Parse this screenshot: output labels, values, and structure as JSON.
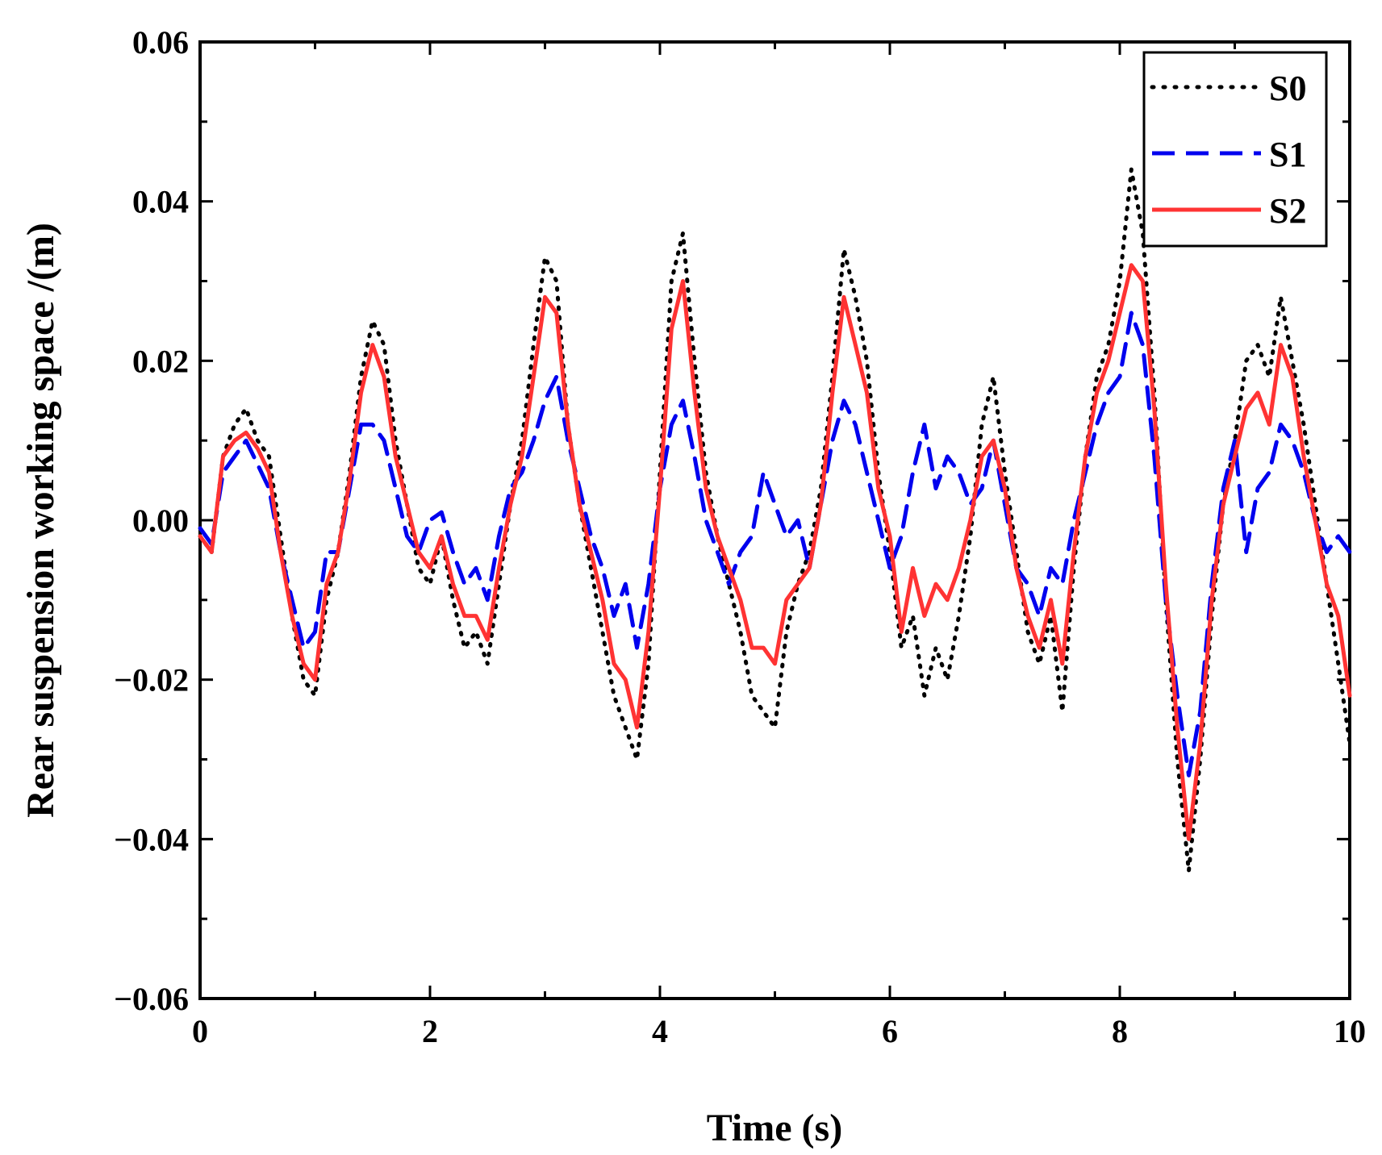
{
  "chart_data": {
    "type": "line",
    "title": "",
    "xlabel": "Time (s)",
    "ylabel": "Rear suspension working space /(m)",
    "xlim": [
      0,
      10
    ],
    "ylim": [
      -0.06,
      0.06
    ],
    "xticks": [
      0,
      2,
      4,
      6,
      8,
      10
    ],
    "xtick_labels": [
      "0",
      "2",
      "4",
      "6",
      "8",
      "10"
    ],
    "yticks": [
      -0.06,
      -0.04,
      -0.02,
      0.0,
      0.02,
      0.04,
      0.06
    ],
    "ytick_labels": [
      "−0.06",
      "−0.04",
      "−0.02",
      "0.00",
      "0.02",
      "0.04",
      "0.06"
    ],
    "grid": false,
    "legend_position": "top-right",
    "x": [
      0.0,
      0.1,
      0.2,
      0.3,
      0.4,
      0.5,
      0.6,
      0.7,
      0.8,
      0.9,
      1.0,
      1.1,
      1.2,
      1.3,
      1.4,
      1.5,
      1.6,
      1.7,
      1.8,
      1.9,
      2.0,
      2.1,
      2.2,
      2.3,
      2.4,
      2.5,
      2.6,
      2.7,
      2.8,
      2.9,
      3.0,
      3.1,
      3.2,
      3.3,
      3.4,
      3.5,
      3.6,
      3.7,
      3.8,
      3.9,
      4.0,
      4.1,
      4.2,
      4.3,
      4.4,
      4.5,
      4.6,
      4.7,
      4.8,
      4.9,
      5.0,
      5.1,
      5.2,
      5.3,
      5.4,
      5.5,
      5.6,
      5.7,
      5.8,
      5.9,
      6.0,
      6.1,
      6.2,
      6.3,
      6.4,
      6.5,
      6.6,
      6.7,
      6.8,
      6.9,
      7.0,
      7.1,
      7.2,
      7.3,
      7.4,
      7.5,
      7.6,
      7.7,
      7.8,
      7.9,
      8.0,
      8.1,
      8.2,
      8.3,
      8.4,
      8.5,
      8.6,
      8.7,
      8.8,
      8.9,
      9.0,
      9.1,
      9.2,
      9.3,
      9.4,
      9.5,
      9.6,
      9.7,
      9.8,
      9.9,
      10.0
    ],
    "series": [
      {
        "name": "S0",
        "color": "#000000",
        "style": "dotted",
        "values": [
          -0.002,
          -0.004,
          0.008,
          0.012,
          0.014,
          0.01,
          0.008,
          -0.002,
          -0.012,
          -0.02,
          -0.022,
          -0.01,
          -0.004,
          0.006,
          0.018,
          0.025,
          0.022,
          0.01,
          0.002,
          -0.006,
          -0.008,
          -0.002,
          -0.01,
          -0.016,
          -0.014,
          -0.018,
          -0.008,
          0.002,
          0.01,
          0.022,
          0.033,
          0.03,
          0.012,
          0.002,
          -0.006,
          -0.014,
          -0.022,
          -0.026,
          -0.03,
          -0.018,
          0.006,
          0.03,
          0.036,
          0.02,
          0.006,
          -0.002,
          -0.008,
          -0.014,
          -0.022,
          -0.024,
          -0.026,
          -0.014,
          -0.008,
          -0.004,
          0.004,
          0.018,
          0.034,
          0.028,
          0.02,
          0.006,
          -0.004,
          -0.016,
          -0.012,
          -0.022,
          -0.016,
          -0.02,
          -0.012,
          -0.002,
          0.012,
          0.018,
          0.006,
          -0.004,
          -0.014,
          -0.018,
          -0.012,
          -0.024,
          -0.006,
          0.008,
          0.018,
          0.022,
          0.03,
          0.044,
          0.036,
          0.016,
          -0.01,
          -0.03,
          -0.044,
          -0.03,
          -0.012,
          0.002,
          0.01,
          0.02,
          0.022,
          0.018,
          0.028,
          0.02,
          0.012,
          0.002,
          -0.008,
          -0.018,
          -0.028
        ]
      },
      {
        "name": "S1",
        "color": "#0000ee",
        "style": "dashed",
        "values": [
          -0.001,
          -0.003,
          0.006,
          0.008,
          0.01,
          0.007,
          0.004,
          -0.004,
          -0.01,
          -0.016,
          -0.014,
          -0.004,
          -0.004,
          0.004,
          0.012,
          0.012,
          0.01,
          0.004,
          -0.002,
          -0.004,
          0.0,
          0.001,
          -0.004,
          -0.008,
          -0.006,
          -0.01,
          -0.002,
          0.004,
          0.006,
          0.01,
          0.015,
          0.018,
          0.01,
          0.004,
          -0.002,
          -0.006,
          -0.012,
          -0.008,
          -0.016,
          -0.008,
          0.004,
          0.012,
          0.015,
          0.008,
          0.0,
          -0.004,
          -0.008,
          -0.004,
          -0.002,
          0.006,
          0.002,
          -0.002,
          0.0,
          -0.006,
          0.002,
          0.01,
          0.015,
          0.012,
          0.006,
          0.0,
          -0.006,
          -0.002,
          0.006,
          0.012,
          0.004,
          0.008,
          0.006,
          0.002,
          0.004,
          0.01,
          0.002,
          -0.006,
          -0.008,
          -0.012,
          -0.006,
          -0.008,
          0.0,
          0.006,
          0.012,
          0.016,
          0.018,
          0.026,
          0.022,
          0.008,
          -0.01,
          -0.022,
          -0.032,
          -0.024,
          -0.008,
          0.004,
          0.01,
          -0.004,
          0.004,
          0.006,
          0.012,
          0.01,
          0.006,
          0.0,
          -0.004,
          -0.002,
          -0.004
        ]
      },
      {
        "name": "S2",
        "color": "#ff3333",
        "style": "solid",
        "values": [
          -0.002,
          -0.004,
          0.008,
          0.01,
          0.011,
          0.009,
          0.006,
          -0.004,
          -0.012,
          -0.018,
          -0.02,
          -0.008,
          -0.004,
          0.005,
          0.016,
          0.022,
          0.018,
          0.008,
          0.002,
          -0.004,
          -0.006,
          -0.002,
          -0.008,
          -0.012,
          -0.012,
          -0.015,
          -0.006,
          0.002,
          0.008,
          0.018,
          0.028,
          0.026,
          0.012,
          0.002,
          -0.004,
          -0.01,
          -0.018,
          -0.02,
          -0.026,
          -0.014,
          0.004,
          0.024,
          0.03,
          0.016,
          0.004,
          -0.002,
          -0.006,
          -0.01,
          -0.016,
          -0.016,
          -0.018,
          -0.01,
          -0.008,
          -0.006,
          0.002,
          0.016,
          0.028,
          0.022,
          0.016,
          0.004,
          -0.002,
          -0.014,
          -0.006,
          -0.012,
          -0.008,
          -0.01,
          -0.006,
          0.0,
          0.008,
          0.01,
          0.004,
          -0.006,
          -0.012,
          -0.016,
          -0.01,
          -0.018,
          -0.004,
          0.008,
          0.016,
          0.02,
          0.026,
          0.032,
          0.03,
          0.014,
          -0.008,
          -0.026,
          -0.04,
          -0.028,
          -0.01,
          0.002,
          0.008,
          0.014,
          0.016,
          0.012,
          0.022,
          0.018,
          0.008,
          0.0,
          -0.008,
          -0.012,
          -0.022
        ]
      }
    ]
  }
}
